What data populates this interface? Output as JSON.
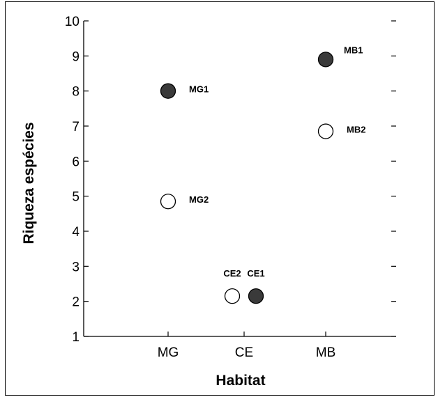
{
  "chart_data": {
    "type": "scatter",
    "title": "",
    "xlabel": "Habitat",
    "ylabel": "Riqueza espécies",
    "categories": [
      "MG",
      "CE",
      "MB"
    ],
    "ylim": [
      1,
      10
    ],
    "yticks": [
      "1",
      "2",
      "3",
      "4",
      "5",
      "6",
      "7",
      "8",
      "9",
      "10"
    ],
    "grid": false,
    "points": [
      {
        "label": "MG1",
        "category": "MG",
        "y": 8.0,
        "fill": "#3a3a3a"
      },
      {
        "label": "MG2",
        "category": "MG",
        "y": 4.85,
        "fill": "#ffffff"
      },
      {
        "label": "CE2",
        "category": "CE",
        "y": 2.15,
        "fill": "#ffffff"
      },
      {
        "label": "CE1",
        "category": "CE",
        "y": 2.15,
        "fill": "#3a3a3a"
      },
      {
        "label": "MB1",
        "category": "MB",
        "y": 8.9,
        "fill": "#3a3a3a"
      },
      {
        "label": "MB2",
        "category": "MB",
        "y": 6.85,
        "fill": "#ffffff"
      }
    ]
  }
}
